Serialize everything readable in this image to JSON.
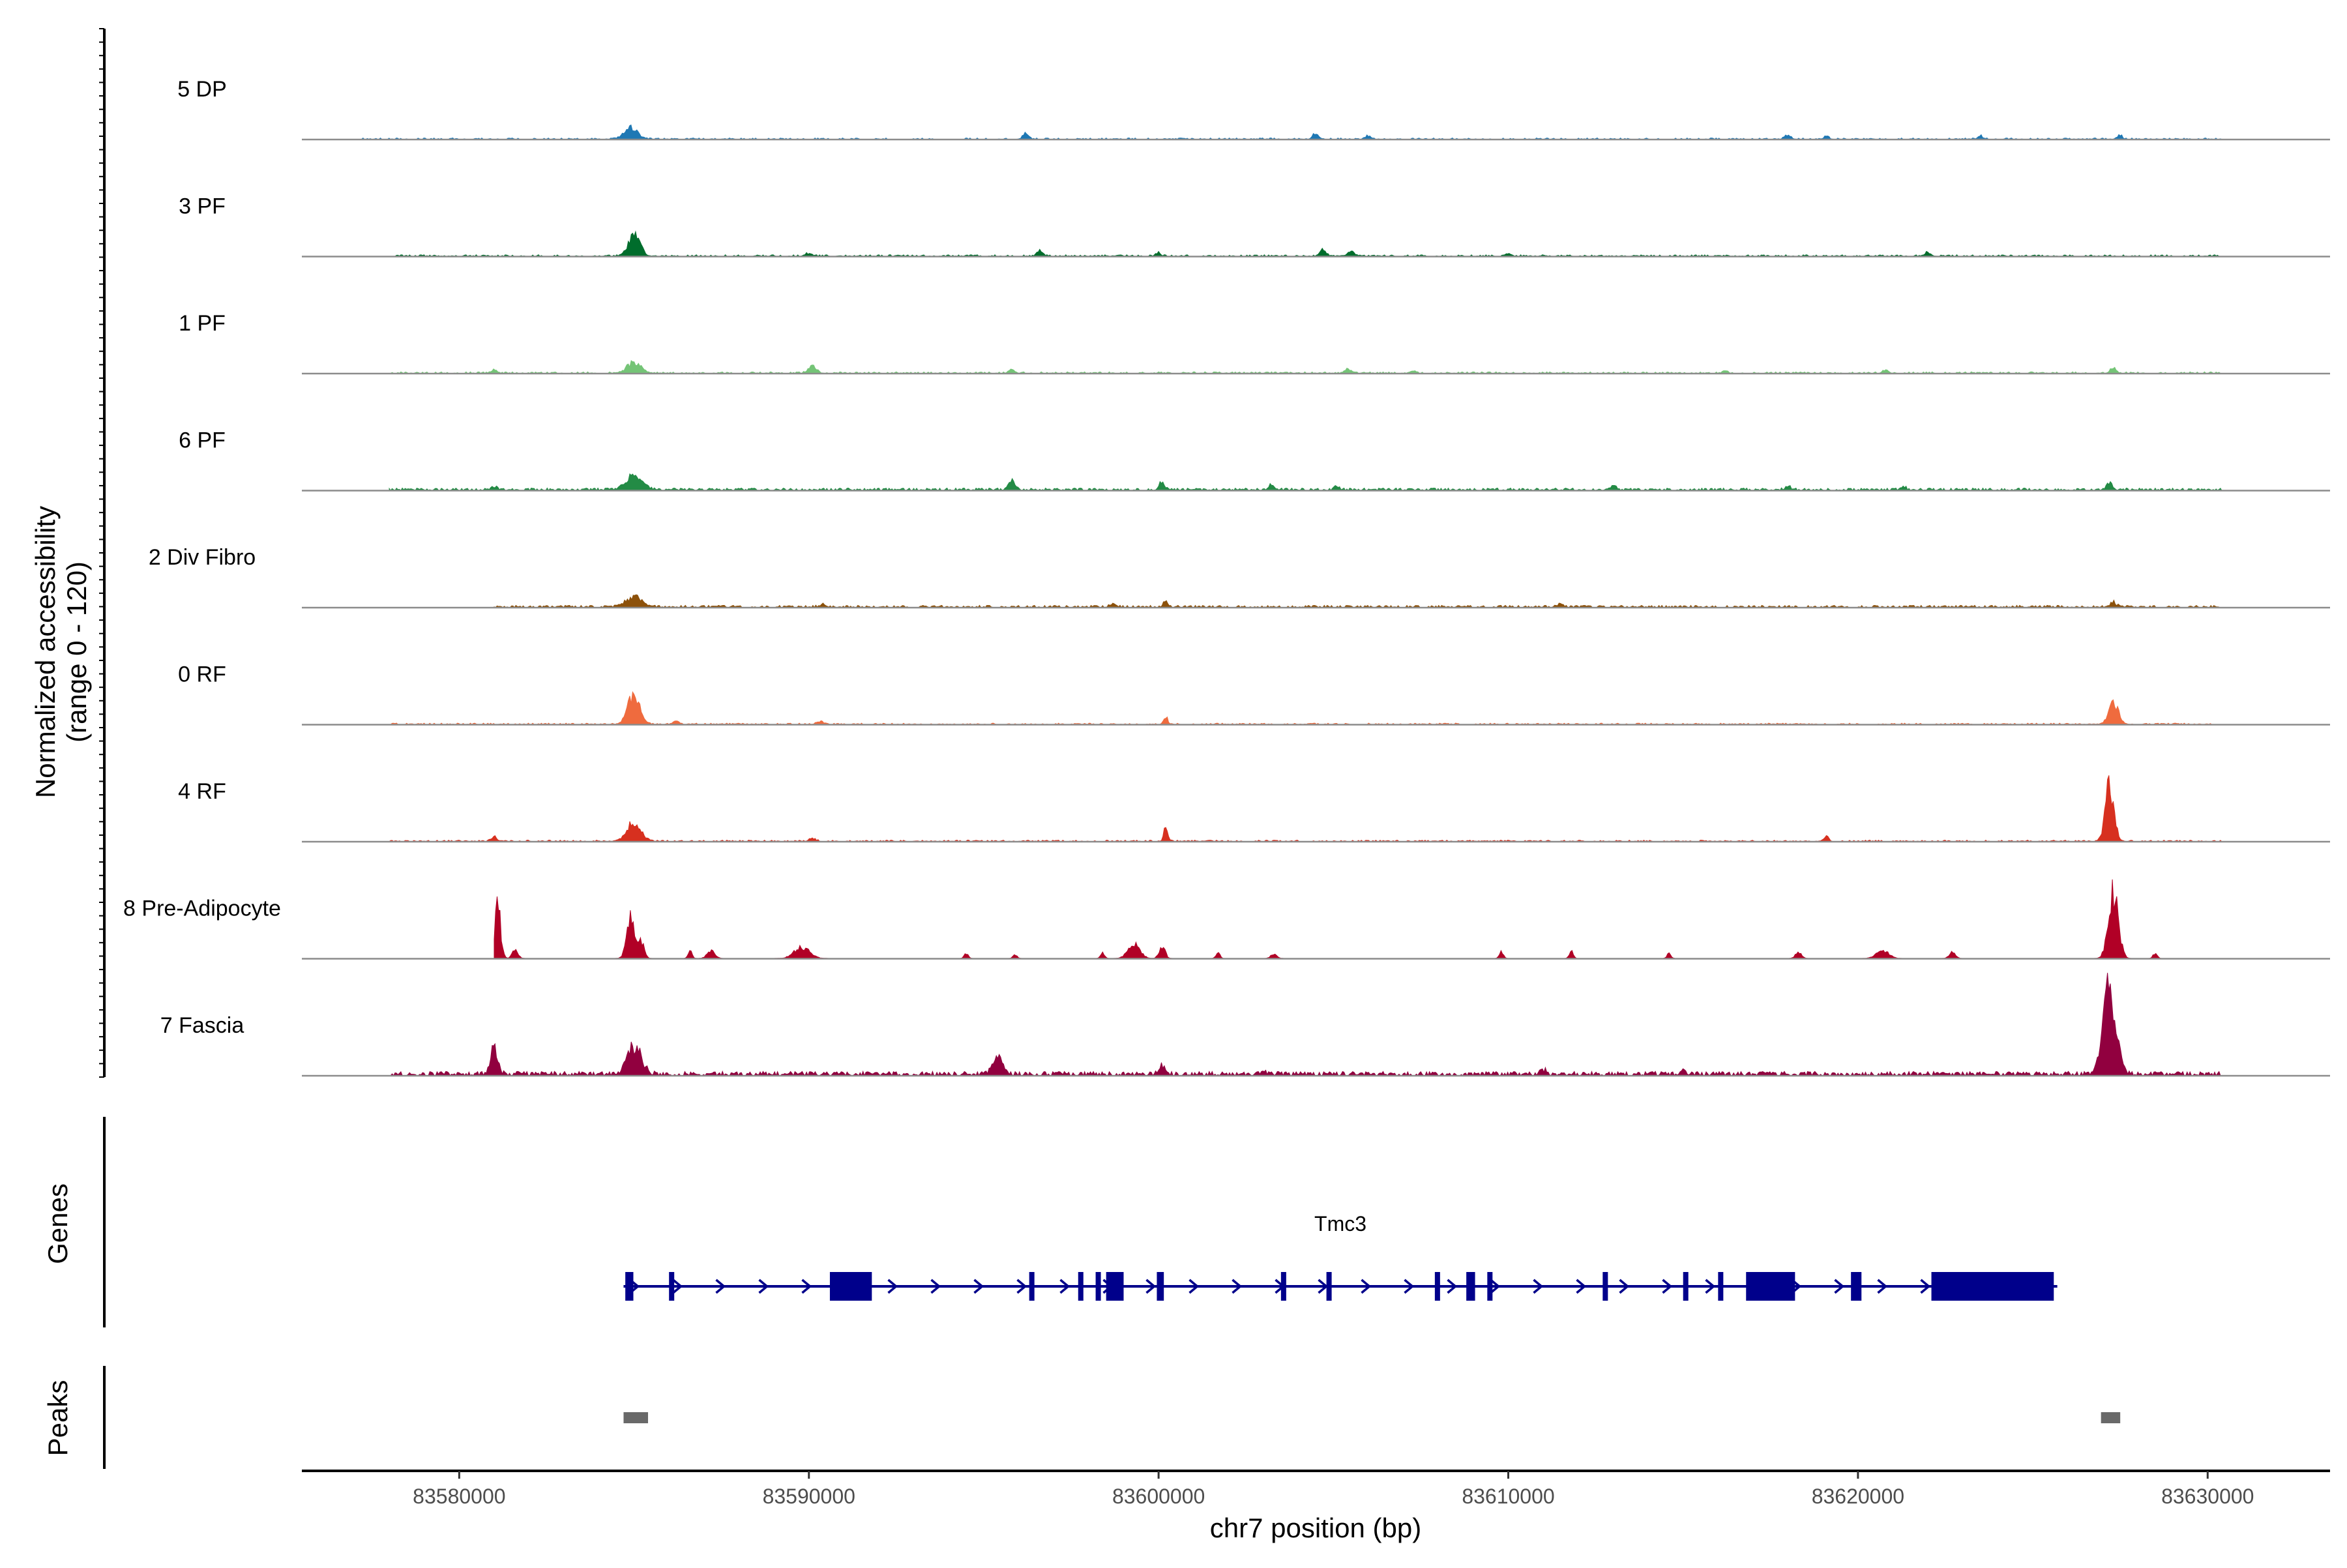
{
  "chart_data": {
    "type": "area",
    "title": "",
    "chromosome": "chr7",
    "xlabel": "chr7 position (bp)",
    "ylabel": "Normalized accessibility",
    "ylabel_range": "(range 0 - 120)",
    "ylim": [
      0,
      120
    ],
    "xlim": [
      83575500,
      83633500
    ],
    "x_ticks": [
      83580000,
      83590000,
      83600000,
      83610000,
      83620000,
      83630000
    ],
    "x_tick_labels": [
      "83580000",
      "83590000",
      "83600000",
      "83610000",
      "83620000",
      "83630000"
    ],
    "track_start": 83575500,
    "track_end": 83633500,
    "series": [
      {
        "name": "5 DP",
        "color": "#1f78b4",
        "signal_start": 83577000,
        "signal_end": 83630400,
        "background": [
          0.3,
          1.4
        ],
        "background_density": 0.35,
        "peaks": [
          [
            83584900,
            350,
            16
          ],
          [
            83596200,
            150,
            8
          ],
          [
            83604500,
            150,
            8
          ],
          [
            83606000,
            120,
            5
          ],
          [
            83618000,
            150,
            6
          ],
          [
            83619100,
            120,
            5
          ],
          [
            83623500,
            120,
            5
          ],
          [
            83627500,
            120,
            5
          ]
        ]
      },
      {
        "name": "3 PF",
        "color": "#006d2c",
        "signal_start": 83578000,
        "signal_end": 83630400,
        "background": [
          0.3,
          1.6
        ],
        "background_density": 0.45,
        "peaks": [
          [
            83585000,
            300,
            28
          ],
          [
            83590000,
            150,
            4
          ],
          [
            83596600,
            150,
            8
          ],
          [
            83600000,
            120,
            5
          ],
          [
            83604700,
            150,
            9
          ],
          [
            83605500,
            150,
            7
          ],
          [
            83610000,
            120,
            4
          ],
          [
            83622000,
            150,
            5
          ]
        ]
      },
      {
        "name": "1 PF",
        "color": "#74c476",
        "signal_start": 83578000,
        "signal_end": 83630400,
        "background": [
          0.3,
          1.6
        ],
        "background_density": 0.45,
        "peaks": [
          [
            83581000,
            150,
            5
          ],
          [
            83585000,
            350,
            15
          ],
          [
            83590100,
            200,
            10
          ],
          [
            83595800,
            150,
            5
          ],
          [
            83605400,
            150,
            6
          ],
          [
            83607300,
            120,
            4
          ],
          [
            83616200,
            120,
            4
          ],
          [
            83620800,
            120,
            5
          ],
          [
            83627300,
            150,
            7
          ]
        ]
      },
      {
        "name": "6 PF",
        "color": "#238b45",
        "signal_start": 83578000,
        "signal_end": 83630400,
        "background": [
          0.5,
          2.5
        ],
        "background_density": 0.6,
        "peaks": [
          [
            83581000,
            150,
            5
          ],
          [
            83585000,
            400,
            21
          ],
          [
            83595800,
            180,
            12
          ],
          [
            83600100,
            150,
            10
          ],
          [
            83603200,
            120,
            6
          ],
          [
            83605100,
            120,
            5
          ],
          [
            83613000,
            150,
            6
          ],
          [
            83618000,
            150,
            5
          ],
          [
            83621300,
            120,
            5
          ],
          [
            83627200,
            150,
            9
          ]
        ]
      },
      {
        "name": "2 Div Fibro",
        "color": "#8c510a",
        "signal_start": 83581000,
        "signal_end": 83630400,
        "background": [
          0.5,
          2.2
        ],
        "background_density": 0.55,
        "peaks": [
          [
            83585000,
            400,
            15
          ],
          [
            83590400,
            150,
            4
          ],
          [
            83598700,
            150,
            6
          ],
          [
            83600200,
            120,
            8
          ],
          [
            83611500,
            150,
            5
          ],
          [
            83627300,
            150,
            7
          ]
        ]
      },
      {
        "name": "0 RF",
        "color": "#ef6b3e",
        "signal_start": 83578000,
        "signal_end": 83630400,
        "background": [
          0.3,
          1.4
        ],
        "background_density": 0.4,
        "peaks": [
          [
            83585000,
            300,
            42
          ],
          [
            83586200,
            150,
            5
          ],
          [
            83590300,
            150,
            4
          ],
          [
            83600200,
            100,
            12
          ],
          [
            83627300,
            250,
            30
          ]
        ]
      },
      {
        "name": "4 RF",
        "color": "#d7301f",
        "signal_start": 83578000,
        "signal_end": 83630400,
        "background": [
          0.3,
          1.4
        ],
        "background_density": 0.4,
        "peaks": [
          [
            83581000,
            150,
            6
          ],
          [
            83585000,
            350,
            28
          ],
          [
            83590100,
            150,
            5
          ],
          [
            83600200,
            100,
            18
          ],
          [
            83619100,
            100,
            9
          ],
          [
            83627200,
            220,
            80
          ]
        ]
      },
      {
        "name": "8 Pre-Adipocyte",
        "color": "#b10026",
        "signal_start": 83581000,
        "signal_end": 83630400,
        "background": [
          0,
          0
        ],
        "background_density": 0,
        "peaks": [
          [
            83581100,
            150,
            75
          ],
          [
            83581600,
            150,
            12
          ],
          [
            83584900,
            200,
            60
          ],
          [
            83585200,
            150,
            25
          ],
          [
            83586600,
            100,
            10
          ],
          [
            83587200,
            200,
            10
          ],
          [
            83589800,
            400,
            15
          ],
          [
            83594500,
            100,
            7
          ],
          [
            83595900,
            100,
            6
          ],
          [
            83598400,
            100,
            8
          ],
          [
            83599300,
            300,
            20
          ],
          [
            83600100,
            150,
            18
          ],
          [
            83601700,
            100,
            8
          ],
          [
            83603300,
            150,
            7
          ],
          [
            83609800,
            100,
            10
          ],
          [
            83611800,
            100,
            10
          ],
          [
            83614600,
            100,
            7
          ],
          [
            83618300,
            150,
            9
          ],
          [
            83620700,
            300,
            12
          ],
          [
            83622700,
            150,
            10
          ],
          [
            83627300,
            250,
            100
          ],
          [
            83628500,
            100,
            8
          ]
        ]
      },
      {
        "name": "7 Fascia",
        "color": "#91003f",
        "signal_start": 83578000,
        "signal_end": 83630400,
        "background": [
          0.8,
          4.5
        ],
        "background_density": 0.7,
        "peaks": [
          [
            83581000,
            180,
            38
          ],
          [
            83585000,
            350,
            40
          ],
          [
            83595400,
            250,
            28
          ],
          [
            83600100,
            150,
            15
          ],
          [
            83603000,
            120,
            6
          ],
          [
            83611000,
            150,
            6
          ],
          [
            83615000,
            150,
            6
          ],
          [
            83627200,
            330,
            120
          ]
        ]
      }
    ],
    "genes": [
      {
        "name": "Tmc3",
        "strand": "+",
        "start": 83584700,
        "end": 83625700,
        "exons": [
          [
            83584750,
            83584980
          ],
          [
            83586000,
            83586120
          ],
          [
            83590600,
            83591800
          ],
          [
            83596300,
            83596400
          ],
          [
            83597700,
            83597800
          ],
          [
            83598200,
            83598320
          ],
          [
            83598500,
            83599000
          ],
          [
            83599950,
            83600150
          ],
          [
            83603500,
            83603600
          ],
          [
            83604800,
            83604900
          ],
          [
            83607900,
            83608000
          ],
          [
            83608800,
            83609050
          ],
          [
            83609400,
            83609500
          ],
          [
            83612700,
            83612800
          ],
          [
            83615000,
            83615100
          ],
          [
            83616000,
            83616120
          ],
          [
            83616800,
            83618200
          ],
          [
            83619800,
            83620100
          ],
          [
            83622100,
            83625600
          ]
        ]
      }
    ],
    "peaks_track": [
      [
        83584700,
        83585400
      ],
      [
        83626950,
        83627500
      ]
    ],
    "panel_labels": {
      "genes": "Genes",
      "peaks": "Peaks"
    }
  }
}
